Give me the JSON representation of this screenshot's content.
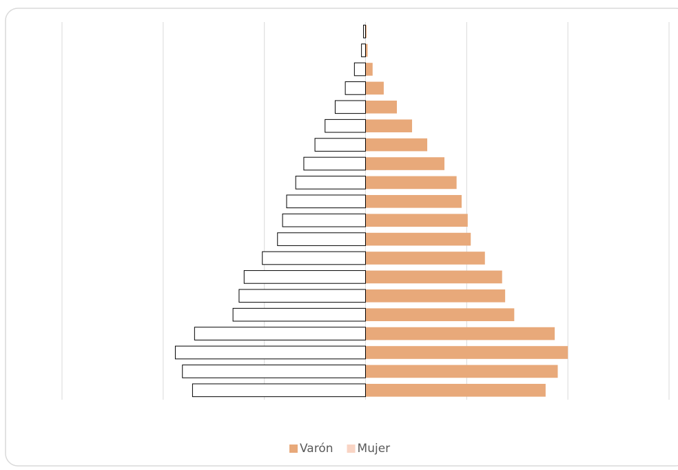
{
  "chart_data": {
    "type": "pyramid",
    "categories": [
      null,
      null,
      null,
      null,
      null,
      null,
      null,
      null,
      null,
      null,
      null,
      null,
      null,
      null,
      null,
      null,
      null,
      null,
      null,
      null
    ],
    "series": [
      {
        "name": "Varón",
        "color": "#e8a97a",
        "side": "right",
        "values": [
          1.78,
          1.9,
          2.0,
          1.87,
          1.47,
          1.38,
          1.35,
          1.18,
          1.04,
          1.01,
          0.95,
          0.9,
          0.78,
          0.61,
          0.46,
          0.31,
          0.18,
          0.07,
          0.02,
          0.01
        ]
      },
      {
        "name": "Mujer",
        "color": "#f9d4c4",
        "bar_fill": "#ffffff",
        "bar_stroke": "#000000",
        "side": "left",
        "values": [
          1.71,
          1.81,
          1.88,
          1.69,
          1.31,
          1.25,
          1.2,
          1.02,
          0.87,
          0.82,
          0.78,
          0.69,
          0.61,
          0.5,
          0.4,
          0.3,
          0.2,
          0.11,
          0.04,
          0.02
        ]
      }
    ],
    "xlim": [
      -3,
      3
    ],
    "xticks": [
      -3,
      -2,
      -1,
      0,
      1,
      2,
      3
    ],
    "grid": true,
    "legend": "bottom"
  }
}
